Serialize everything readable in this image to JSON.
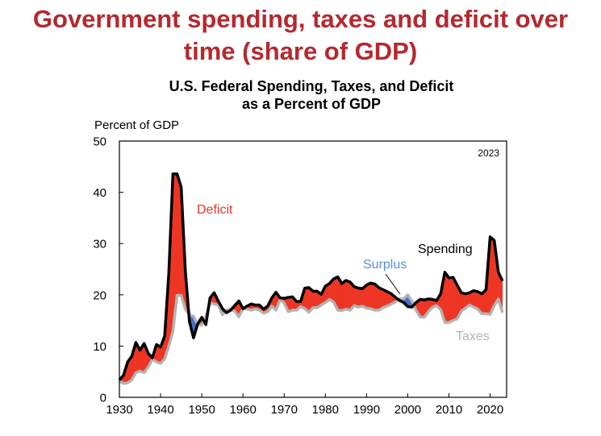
{
  "slide_title": "Government spending, taxes and deficit over\ntime (share of GDP)",
  "colors": {
    "title": "#b5282e",
    "deficit": "#ee3524",
    "surplus": "#3f6fc8",
    "surplus_label": "#5b8fd3",
    "spending": "#000000",
    "taxes": "#b3b3b3"
  },
  "chart_data": {
    "type": "area",
    "title": "U.S. Federal Spending, Taxes, and Deficit\nas a Percent of GDP",
    "ylabel": "Percent of GDP",
    "xlabel": "",
    "xlim": [
      1930,
      2024
    ],
    "ylim": [
      0,
      50
    ],
    "x_ticks": [
      1930,
      1940,
      1950,
      1960,
      1970,
      1980,
      1990,
      2000,
      2010,
      2020
    ],
    "y_ticks": [
      0,
      10,
      20,
      30,
      40,
      50
    ],
    "grid": false,
    "corner_note": "2023",
    "annotations": {
      "deficit": "Deficit",
      "surplus": "Surplus",
      "spending": "Spending",
      "taxes": "Taxes"
    },
    "years": [
      1930,
      1931,
      1932,
      1933,
      1934,
      1935,
      1936,
      1937,
      1938,
      1939,
      1940,
      1941,
      1942,
      1943,
      1944,
      1945,
      1946,
      1947,
      1948,
      1949,
      1950,
      1951,
      1952,
      1953,
      1954,
      1955,
      1956,
      1957,
      1958,
      1959,
      1960,
      1961,
      1962,
      1963,
      1964,
      1965,
      1966,
      1967,
      1968,
      1969,
      1970,
      1971,
      1972,
      1973,
      1974,
      1975,
      1976,
      1977,
      1978,
      1979,
      1980,
      1981,
      1982,
      1983,
      1984,
      1985,
      1986,
      1987,
      1988,
      1989,
      1990,
      1991,
      1992,
      1993,
      1994,
      1995,
      1996,
      1997,
      1998,
      1999,
      2000,
      2001,
      2002,
      2003,
      2004,
      2005,
      2006,
      2007,
      2008,
      2009,
      2010,
      2011,
      2012,
      2013,
      2014,
      2015,
      2016,
      2017,
      2018,
      2019,
      2020,
      2021,
      2022,
      2023
    ],
    "series": [
      {
        "name": "Spending",
        "values": [
          3.4,
          4.3,
          6.9,
          8.0,
          10.7,
          9.2,
          10.5,
          8.6,
          7.7,
          10.3,
          9.8,
          12.0,
          24.3,
          43.6,
          43.6,
          41.0,
          24.8,
          14.8,
          11.6,
          14.3,
          15.6,
          14.2,
          19.4,
          20.4,
          18.8,
          17.3,
          16.5,
          17.0,
          17.9,
          18.8,
          17.3,
          17.8,
          18.2,
          18.0,
          18.0,
          17.2,
          17.8,
          19.4,
          20.5,
          19.4,
          19.3,
          19.5,
          19.6,
          18.7,
          18.7,
          21.3,
          21.4,
          20.7,
          20.7,
          20.1,
          21.7,
          22.2,
          23.1,
          23.5,
          22.2,
          22.8,
          22.5,
          21.6,
          21.3,
          21.2,
          21.9,
          22.3,
          22.1,
          21.4,
          21.0,
          20.6,
          20.2,
          19.5,
          18.9,
          18.5,
          17.7,
          17.6,
          18.5,
          19.1,
          19.0,
          19.2,
          19.1,
          18.9,
          20.2,
          24.4,
          23.3,
          23.4,
          21.9,
          20.4,
          20.2,
          20.4,
          20.8,
          20.6,
          20.2,
          21.0,
          31.3,
          30.6,
          24.4,
          22.7
        ]
      },
      {
        "name": "Taxes",
        "values": [
          3.2,
          2.7,
          2.8,
          3.4,
          4.8,
          5.1,
          4.8,
          5.9,
          7.4,
          6.9,
          6.6,
          7.5,
          10.0,
          12.9,
          19.9,
          19.9,
          17.2,
          16.1,
          15.8,
          14.2,
          14.1,
          15.8,
          18.5,
          18.2,
          18.0,
          16.1,
          17.0,
          17.2,
          16.8,
          15.7,
          17.3,
          17.2,
          17.0,
          17.2,
          17.0,
          16.4,
          16.7,
          17.8,
          17.0,
          19.0,
          18.4,
          16.7,
          17.0,
          17.0,
          17.7,
          17.3,
          16.6,
          17.5,
          17.5,
          18.0,
          18.5,
          19.1,
          18.6,
          17.0,
          16.9,
          17.2,
          17.0,
          17.9,
          17.6,
          17.8,
          17.4,
          17.3,
          17.0,
          17.0,
          17.5,
          17.8,
          18.2,
          18.6,
          19.2,
          19.2,
          20.0,
          18.8,
          17.0,
          15.7,
          15.6,
          16.7,
          17.6,
          17.9,
          17.1,
          14.6,
          14.6,
          15.0,
          15.3,
          16.8,
          17.4,
          18.0,
          17.6,
          17.2,
          16.3,
          16.3,
          16.2,
          17.9,
          19.2,
          16.5
        ]
      }
    ]
  }
}
